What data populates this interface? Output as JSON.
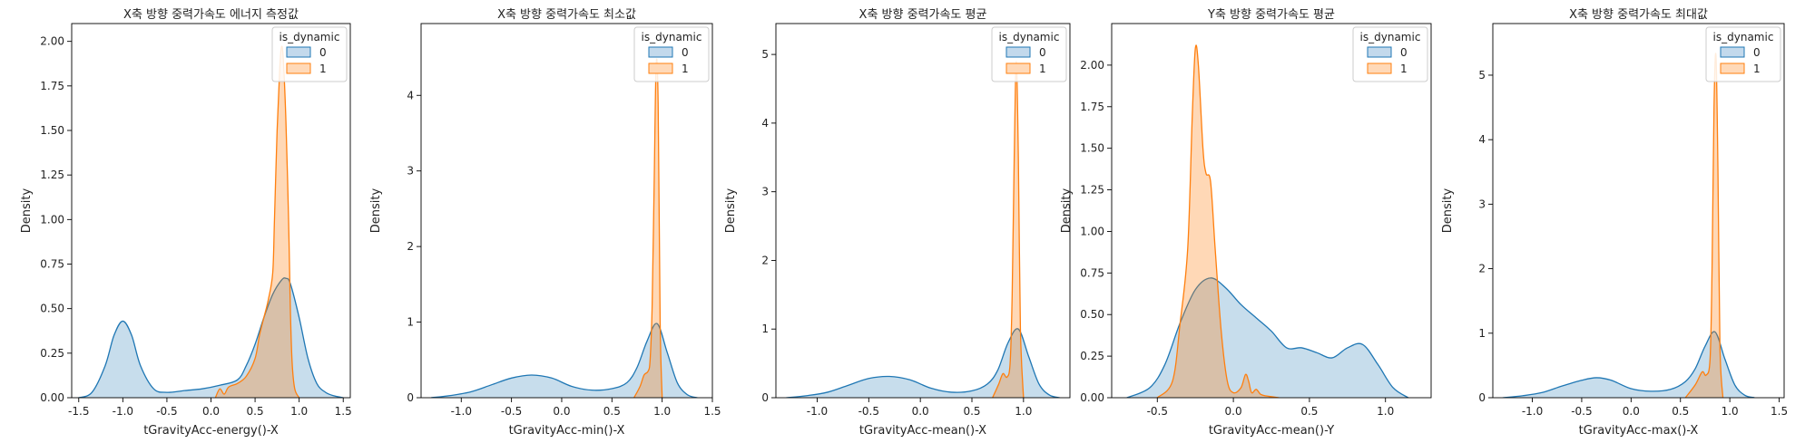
{
  "figure": {
    "legend_title": "is_dynamic",
    "legend_labels": [
      "0",
      "1"
    ],
    "colors": {
      "series_0": "#1f77b4",
      "series_1": "#ff7f0e",
      "fill_0": "#c3d9ec",
      "fill_1": "#ffd9b8"
    }
  },
  "chart_data": [
    {
      "type": "area",
      "title": "X축 방향 중력가속도 에너지 측정값",
      "xlabel": "tGravityAcc-energy()-X",
      "ylabel": "Density",
      "xlim": [
        -1.58,
        1.58
      ],
      "ylim": [
        0,
        2.1
      ],
      "xticks": [
        -1.5,
        -1.0,
        -0.5,
        0.0,
        0.5,
        1.0,
        1.5
      ],
      "xtick_labels": [
        "-1.5",
        "-1.0",
        "-0.5",
        "0.0",
        "0.5",
        "1.0",
        "1.5"
      ],
      "yticks": [
        0,
        0.25,
        0.5,
        0.75,
        1.0,
        1.25,
        1.5,
        1.75,
        2.0
      ],
      "ytick_labels": [
        "0.00",
        "0.25",
        "0.50",
        "0.75",
        "1.00",
        "1.25",
        "1.50",
        "1.75",
        "2.00"
      ],
      "legend": "top-right",
      "series": [
        {
          "name": "0",
          "x": [
            -1.5,
            -1.35,
            -1.2,
            -1.1,
            -1.0,
            -0.9,
            -0.8,
            -0.65,
            -0.5,
            -0.3,
            -0.1,
            0.1,
            0.3,
            0.4,
            0.5,
            0.6,
            0.7,
            0.8,
            0.85,
            0.9,
            1.0,
            1.1,
            1.2,
            1.3,
            1.4,
            1.5
          ],
          "y": [
            0.0,
            0.03,
            0.18,
            0.35,
            0.43,
            0.35,
            0.18,
            0.05,
            0.03,
            0.04,
            0.05,
            0.07,
            0.1,
            0.18,
            0.3,
            0.45,
            0.58,
            0.66,
            0.67,
            0.64,
            0.45,
            0.22,
            0.08,
            0.03,
            0.01,
            0.0
          ]
        },
        {
          "name": "1",
          "x": [
            0.05,
            0.1,
            0.15,
            0.2,
            0.3,
            0.4,
            0.5,
            0.55,
            0.6,
            0.65,
            0.7,
            0.72,
            0.75,
            0.78,
            0.8,
            0.82,
            0.85,
            0.88,
            0.9,
            0.92,
            0.95,
            1.0
          ],
          "y": [
            0.0,
            0.05,
            0.02,
            0.06,
            0.08,
            0.12,
            0.22,
            0.35,
            0.45,
            0.55,
            0.7,
            1.0,
            1.5,
            1.85,
            1.97,
            1.9,
            1.55,
            1.0,
            0.5,
            0.2,
            0.05,
            0.0
          ]
        }
      ]
    },
    {
      "type": "area",
      "title": "X축 방향 중력가속도 최소값",
      "xlabel": "tGravityAcc-min()-X",
      "ylabel": "Density",
      "xlim": [
        -1.4,
        1.5
      ],
      "ylim": [
        0,
        4.95
      ],
      "xticks": [
        -1.0,
        -0.5,
        0.0,
        0.5,
        1.0,
        1.5
      ],
      "xtick_labels": [
        "-1.0",
        "-0.5",
        "0.0",
        "0.5",
        "1.0",
        "1.5"
      ],
      "yticks": [
        0,
        1,
        2,
        3,
        4
      ],
      "ytick_labels": [
        "0",
        "1",
        "2",
        "3",
        "4"
      ],
      "legend": "top-right",
      "series": [
        {
          "name": "0",
          "x": [
            -1.3,
            -1.1,
            -0.9,
            -0.7,
            -0.5,
            -0.3,
            -0.1,
            0.1,
            0.3,
            0.5,
            0.65,
            0.75,
            0.85,
            0.95,
            1.05,
            1.15,
            1.25,
            1.35
          ],
          "y": [
            0.0,
            0.03,
            0.08,
            0.17,
            0.26,
            0.3,
            0.26,
            0.15,
            0.1,
            0.12,
            0.2,
            0.4,
            0.75,
            0.98,
            0.6,
            0.2,
            0.04,
            0.0
          ]
        },
        {
          "name": "1",
          "x": [
            0.72,
            0.78,
            0.82,
            0.86,
            0.88,
            0.9,
            0.92,
            0.94,
            0.96,
            0.98,
            1.0
          ],
          "y": [
            0.0,
            0.15,
            0.3,
            0.35,
            0.5,
            1.2,
            2.8,
            4.4,
            3.9,
            1.0,
            0.0
          ]
        }
      ]
    },
    {
      "type": "area",
      "title": "X축 방향 중력가속도 평균",
      "xlabel": "tGravityAcc-mean()-X",
      "ylabel": "Density",
      "xlim": [
        -1.4,
        1.45
      ],
      "ylim": [
        0,
        5.45
      ],
      "xticks": [
        -1.0,
        -0.5,
        0.0,
        0.5,
        1.0
      ],
      "xtick_labels": [
        "-1.0",
        "-0.5",
        "0.0",
        "0.5",
        "1.0"
      ],
      "yticks": [
        0,
        1,
        2,
        3,
        4,
        5
      ],
      "ytick_labels": [
        "0",
        "1",
        "2",
        "3",
        "4",
        "5"
      ],
      "legend": "top-right",
      "series": [
        {
          "name": "0",
          "x": [
            -1.3,
            -1.1,
            -0.9,
            -0.7,
            -0.5,
            -0.3,
            -0.1,
            0.1,
            0.3,
            0.5,
            0.65,
            0.75,
            0.85,
            0.95,
            1.05,
            1.15,
            1.25,
            1.35
          ],
          "y": [
            0.0,
            0.03,
            0.08,
            0.18,
            0.28,
            0.31,
            0.26,
            0.14,
            0.08,
            0.1,
            0.2,
            0.4,
            0.8,
            1.0,
            0.6,
            0.2,
            0.04,
            0.0
          ]
        },
        {
          "name": "1",
          "x": [
            0.7,
            0.76,
            0.8,
            0.84,
            0.87,
            0.89,
            0.91,
            0.93,
            0.95,
            0.97,
            1.0
          ],
          "y": [
            0.0,
            0.2,
            0.35,
            0.3,
            0.5,
            1.5,
            3.5,
            4.9,
            3.5,
            1.0,
            0.0
          ]
        }
      ]
    },
    {
      "type": "area",
      "title": "Y축 방향 중력가속도 평균",
      "xlabel": "tGravityAcc-mean()-Y",
      "ylabel": "Density",
      "xlim": [
        -0.8,
        1.3
      ],
      "ylim": [
        0,
        2.25
      ],
      "xticks": [
        -0.5,
        0.0,
        0.5,
        1.0
      ],
      "xtick_labels": [
        "-0.5",
        "0.0",
        "0.5",
        "1.0"
      ],
      "yticks": [
        0,
        0.25,
        0.5,
        0.75,
        1.0,
        1.25,
        1.5,
        1.75,
        2.0
      ],
      "ytick_labels": [
        "0.00",
        "0.25",
        "0.50",
        "0.75",
        "1.00",
        "1.25",
        "1.50",
        "1.75",
        "2.00"
      ],
      "legend": "top-right",
      "series": [
        {
          "name": "0",
          "x": [
            -0.7,
            -0.55,
            -0.45,
            -0.35,
            -0.25,
            -0.15,
            -0.05,
            0.05,
            0.15,
            0.25,
            0.35,
            0.45,
            0.55,
            0.65,
            0.75,
            0.85,
            0.95,
            1.05,
            1.15
          ],
          "y": [
            0.0,
            0.06,
            0.2,
            0.45,
            0.65,
            0.72,
            0.66,
            0.56,
            0.48,
            0.4,
            0.3,
            0.3,
            0.27,
            0.24,
            0.3,
            0.32,
            0.2,
            0.06,
            0.0
          ]
        },
        {
          "name": "1",
          "x": [
            -0.5,
            -0.4,
            -0.35,
            -0.3,
            -0.27,
            -0.25,
            -0.23,
            -0.2,
            -0.18,
            -0.15,
            -0.12,
            -0.08,
            -0.04,
            0.0,
            0.05,
            0.08,
            0.1,
            0.12,
            0.15,
            0.18,
            0.22,
            0.3
          ],
          "y": [
            0.0,
            0.1,
            0.45,
            0.9,
            1.7,
            2.1,
            2.0,
            1.5,
            1.35,
            1.3,
            0.9,
            0.4,
            0.1,
            0.03,
            0.06,
            0.14,
            0.1,
            0.03,
            0.05,
            0.02,
            0.01,
            0.0
          ]
        }
      ]
    },
    {
      "type": "area",
      "title": "X축 방향 중력가속도 최대값",
      "xlabel": "tGravityAcc-max()-X",
      "ylabel": "Density",
      "xlim": [
        -1.4,
        1.55
      ],
      "ylim": [
        0,
        5.8
      ],
      "xticks": [
        -1.0,
        -0.5,
        0.0,
        0.5,
        1.0,
        1.5
      ],
      "xtick_labels": [
        "-1.0",
        "-0.5",
        "0.0",
        "0.5",
        "1.0",
        "1.5"
      ],
      "yticks": [
        0,
        1,
        2,
        3,
        4,
        5
      ],
      "ytick_labels": [
        "0",
        "1",
        "2",
        "3",
        "4",
        "5"
      ],
      "legend": "top-right",
      "series": [
        {
          "name": "0",
          "x": [
            -1.3,
            -1.1,
            -0.9,
            -0.7,
            -0.5,
            -0.35,
            -0.2,
            0.0,
            0.2,
            0.4,
            0.55,
            0.65,
            0.75,
            0.85,
            0.95,
            1.05,
            1.15,
            1.25
          ],
          "y": [
            0.0,
            0.03,
            0.08,
            0.18,
            0.27,
            0.31,
            0.27,
            0.14,
            0.1,
            0.13,
            0.25,
            0.45,
            0.8,
            1.02,
            0.6,
            0.2,
            0.04,
            0.0
          ]
        },
        {
          "name": "1",
          "x": [
            0.55,
            0.65,
            0.72,
            0.76,
            0.8,
            0.82,
            0.84,
            0.86,
            0.88,
            0.9,
            0.93
          ],
          "y": [
            0.0,
            0.2,
            0.4,
            0.35,
            0.6,
            2.0,
            4.5,
            5.3,
            3.5,
            0.8,
            0.0
          ]
        }
      ]
    }
  ]
}
